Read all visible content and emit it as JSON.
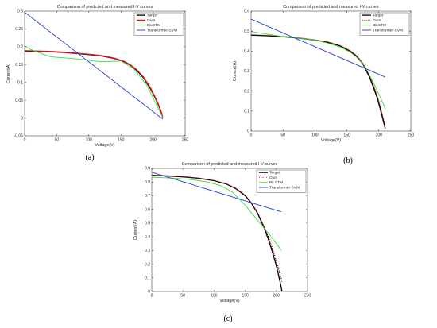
{
  "chart_data": [
    {
      "panel_label": "(a)",
      "type": "line",
      "title": "Comparison of predicted and measured I-V curves",
      "xlabel": "Voltage(V)",
      "ylabel": "Current(A)",
      "xlim": [
        0,
        250
      ],
      "ylim": [
        -0.05,
        0.3
      ],
      "xticks": [
        0,
        50,
        100,
        150,
        200,
        250
      ],
      "yticks": [
        -0.05,
        0,
        0.05,
        0.1,
        0.15,
        0.2,
        0.25,
        0.3
      ],
      "xtick_labels": [
        "0",
        "50",
        "100",
        "150",
        "200",
        "250"
      ],
      "ytick_labels": [
        "-0.05",
        "0",
        "0.05",
        "0.1",
        "0.15",
        "0.2",
        "0.25",
        "0.3"
      ],
      "legend_position": "top-right",
      "series": [
        {
          "name": "Target",
          "color": "#000000",
          "style": "solid",
          "width": 1.3,
          "x": [
            0,
            20,
            40,
            60,
            80,
            100,
            120,
            140,
            155,
            165,
            175,
            185,
            195,
            203,
            208,
            212,
            214,
            215
          ],
          "y": [
            0.188,
            0.187,
            0.186,
            0.184,
            0.181,
            0.178,
            0.174,
            0.167,
            0.158,
            0.148,
            0.133,
            0.113,
            0.085,
            0.058,
            0.038,
            0.02,
            0.009,
            0.0
          ]
        },
        {
          "name": "Ours",
          "color": "#e0101a",
          "style": "solid",
          "width": 1.3,
          "x": [
            0,
            20,
            40,
            60,
            80,
            100,
            120,
            140,
            155,
            165,
            175,
            185,
            195,
            203,
            208,
            212,
            214,
            215
          ],
          "y": [
            0.189,
            0.188,
            0.187,
            0.185,
            0.182,
            0.179,
            0.175,
            0.168,
            0.159,
            0.149,
            0.135,
            0.115,
            0.088,
            0.06,
            0.04,
            0.022,
            0.01,
            0.001
          ]
        },
        {
          "name": "BiLSTM",
          "color": "#33e033",
          "style": "solid",
          "width": 0.9,
          "x": [
            0,
            10,
            40,
            80,
            100,
            120,
            150,
            170,
            190,
            215
          ],
          "y": [
            0.203,
            0.192,
            0.172,
            0.166,
            0.162,
            0.158,
            0.16,
            0.138,
            0.093,
            0.002
          ]
        },
        {
          "name": "Transformer-SVM",
          "color": "#1f3fd6",
          "style": "solid",
          "width": 0.9,
          "x": [
            0,
            215
          ],
          "y": [
            0.297,
            -0.003
          ]
        }
      ]
    },
    {
      "panel_label": "(b)",
      "type": "line",
      "title": "Comparison of predicted and measured I-V curves",
      "xlabel": "Voltage(V)",
      "ylabel": "Current(A)",
      "xlim": [
        0,
        250
      ],
      "ylim": [
        0,
        0.6
      ],
      "xticks": [
        0,
        50,
        100,
        150,
        200,
        250
      ],
      "yticks": [
        0,
        0.1,
        0.2,
        0.3,
        0.4,
        0.5,
        0.6
      ],
      "xtick_labels": [
        "0",
        "50",
        "100",
        "150",
        "200",
        "250"
      ],
      "ytick_labels": [
        "0",
        "0.1",
        "0.2",
        "0.3",
        "0.4",
        "0.5",
        "0.6"
      ],
      "legend_position": "top-right",
      "series": [
        {
          "name": "Target",
          "color": "#000000",
          "style": "solid",
          "width": 1.3,
          "x": [
            0,
            25,
            50,
            75,
            100,
            120,
            140,
            155,
            165,
            175,
            185,
            192,
            198,
            203,
            207,
            210
          ],
          "y": [
            0.48,
            0.477,
            0.472,
            0.465,
            0.455,
            0.444,
            0.425,
            0.4,
            0.375,
            0.335,
            0.272,
            0.215,
            0.16,
            0.1,
            0.05,
            0.012
          ]
        },
        {
          "name": "Ours",
          "color": "#e0101a",
          "style": "dotted",
          "width": 1.0,
          "x": [
            0,
            25,
            50,
            75,
            100,
            120,
            140,
            155,
            165,
            175,
            185,
            192,
            198,
            203,
            207,
            210
          ],
          "y": [
            0.482,
            0.479,
            0.474,
            0.467,
            0.457,
            0.447,
            0.428,
            0.404,
            0.38,
            0.342,
            0.282,
            0.228,
            0.173,
            0.115,
            0.065,
            0.028
          ]
        },
        {
          "name": "BiLSTM",
          "color": "#33e033",
          "style": "solid",
          "width": 0.9,
          "x": [
            0,
            25,
            50,
            75,
            100,
            120,
            140,
            155,
            165,
            175,
            185,
            195,
            205,
            210
          ],
          "y": [
            0.498,
            0.485,
            0.473,
            0.465,
            0.455,
            0.44,
            0.42,
            0.395,
            0.37,
            0.335,
            0.282,
            0.22,
            0.15,
            0.112
          ]
        },
        {
          "name": "Transformer-SVM",
          "color": "#1f3fd6",
          "style": "solid",
          "width": 0.9,
          "x": [
            0,
            210
          ],
          "y": [
            0.56,
            0.27
          ]
        },
        {
          "name": "",
          "color": "#000000",
          "style": "dotted",
          "width": 1.0,
          "x": [
            175,
            185,
            192,
            198,
            203,
            207,
            210
          ],
          "y": [
            0.338,
            0.278,
            0.222,
            0.168,
            0.11,
            0.06,
            0.02
          ]
        }
      ]
    },
    {
      "panel_label": "(c)",
      "type": "line",
      "title": "Comparison of predicted and measured I-V curves",
      "xlabel": "Voltage(V)",
      "ylabel": "Current(A)",
      "xlim": [
        0,
        250
      ],
      "ylim": [
        0,
        0.9
      ],
      "xticks": [
        0,
        50,
        100,
        150,
        200,
        250
      ],
      "yticks": [
        0,
        0.1,
        0.2,
        0.3,
        0.4,
        0.5,
        0.6,
        0.7,
        0.8,
        0.9
      ],
      "xtick_labels": [
        "0",
        "50",
        "100",
        "150",
        "200",
        "250"
      ],
      "ytick_labels": [
        "0",
        "0.1",
        "0.2",
        "0.3",
        "0.4",
        "0.5",
        "0.6",
        "0.7",
        "0.8",
        "0.9"
      ],
      "legend_position": "top-right",
      "series": [
        {
          "name": "Target",
          "color": "#000000",
          "style": "solid",
          "width": 1.3,
          "x": [
            0,
            25,
            50,
            75,
            100,
            120,
            135,
            150,
            160,
            170,
            180,
            188,
            195,
            200,
            204,
            207,
            209
          ],
          "y": [
            0.85,
            0.845,
            0.838,
            0.828,
            0.81,
            0.785,
            0.752,
            0.7,
            0.645,
            0.57,
            0.47,
            0.37,
            0.27,
            0.185,
            0.11,
            0.05,
            0.0
          ]
        },
        {
          "name": "Ours",
          "color": "#e0101a",
          "style": "dotted",
          "width": 1.0,
          "x": [
            0,
            25,
            50,
            75,
            100,
            120,
            135,
            150,
            160,
            170,
            180,
            188,
            195,
            200,
            204,
            207,
            209
          ],
          "y": [
            0.852,
            0.847,
            0.84,
            0.83,
            0.812,
            0.788,
            0.756,
            0.705,
            0.652,
            0.58,
            0.482,
            0.385,
            0.29,
            0.21,
            0.15,
            0.1,
            0.07
          ]
        },
        {
          "name": "BiLSTM",
          "color": "#33e033",
          "style": "solid",
          "width": 0.9,
          "x": [
            0,
            30,
            60,
            90,
            110,
            130,
            150,
            170,
            190,
            208
          ],
          "y": [
            0.835,
            0.83,
            0.82,
            0.8,
            0.775,
            0.725,
            0.63,
            0.52,
            0.41,
            0.3
          ]
        },
        {
          "name": "Transformer-SVM",
          "color": "#1f3fd6",
          "style": "solid",
          "width": 0.9,
          "x": [
            0,
            208
          ],
          "y": [
            0.872,
            0.582
          ]
        },
        {
          "name": "",
          "color": "#000000",
          "style": "dotted",
          "width": 1.0,
          "x": [
            180,
            188,
            195,
            200,
            204,
            207,
            209
          ],
          "y": [
            0.48,
            0.39,
            0.3,
            0.22,
            0.16,
            0.11,
            0.08
          ]
        }
      ]
    }
  ]
}
